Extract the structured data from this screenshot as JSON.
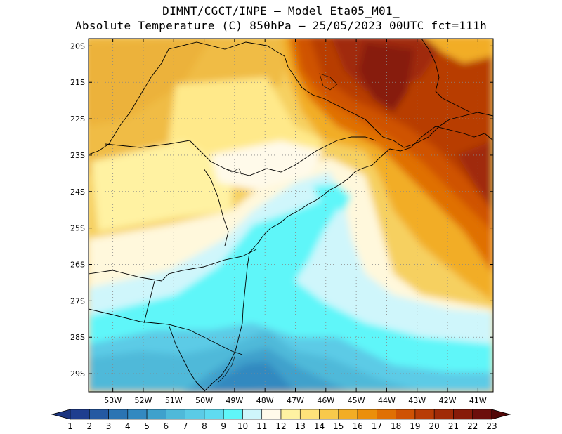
{
  "title": {
    "line1": "DIMNT/CGCT/INPE –  Model Eta05_M01_",
    "line2": "Absolute Temperature (C) 850hPa –  25/05/2023 00UTC fct=111h"
  },
  "axes": {
    "lat_labels": [
      "20S",
      "21S",
      "22S",
      "23S",
      "24S",
      "25S",
      "26S",
      "27S",
      "28S",
      "29S"
    ],
    "lon_labels": [
      "53W",
      "52W",
      "51W",
      "50W",
      "49W",
      "48W",
      "47W",
      "46W",
      "45W",
      "44W",
      "43W",
      "42W",
      "41W"
    ]
  },
  "colorbar": {
    "labels": [
      "1",
      "2",
      "3",
      "4",
      "5",
      "6",
      "7",
      "8",
      "9",
      "10",
      "11",
      "12",
      "13",
      "14",
      "15",
      "16",
      "17",
      "18",
      "19",
      "20",
      "21",
      "22",
      "23"
    ],
    "colors": [
      "#1f3e8f",
      "#2459a2",
      "#2b74b3",
      "#3389c0",
      "#3fa1cc",
      "#4fb9d9",
      "#5bcbe6",
      "#5fdbf0",
      "#5ff6f9",
      "#cff6fb",
      "#fffaea",
      "#fff2a2",
      "#ffe27a",
      "#f8c94b",
      "#f2ad25",
      "#eb8f0b",
      "#e07004",
      "#cf5204",
      "#b83c06",
      "#a02a07",
      "#871b09",
      "#6c0e0b"
    ],
    "left_arrow_color": "#1b3580",
    "right_arrow_color": "#520808"
  },
  "map": {
    "domain": "Southern/Southeastern Brazil",
    "lon_range": [
      -53.8,
      -40.5
    ],
    "lat_range": [
      -29.5,
      -19.8
    ]
  }
}
